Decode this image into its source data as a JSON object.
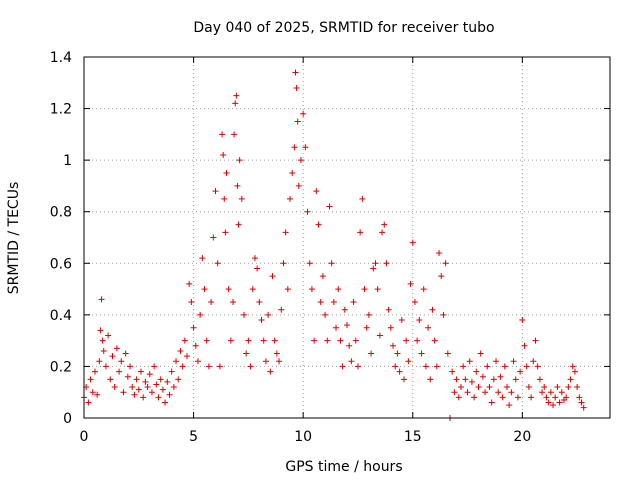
{
  "chart_data": {
    "type": "scatter",
    "title": "Day 040 of 2025, SRMTID for receiver tubo",
    "xlabel": "GPS time / hours",
    "ylabel": "SRMTID / TECUs",
    "xlim": [
      0,
      24
    ],
    "ylim": [
      0,
      1.4
    ],
    "x_ticks": [
      0,
      5,
      10,
      15,
      20
    ],
    "x_tick_labels": [
      "0",
      "5",
      "10",
      "15",
      "20"
    ],
    "y_ticks": [
      0,
      0.2,
      0.4,
      0.6,
      0.8,
      1,
      1.2,
      1.4
    ],
    "y_tick_labels": [
      "0",
      "0.2",
      "0.4",
      "0.6",
      "0.8",
      "1",
      "1.2",
      "1.4"
    ],
    "grid": true,
    "marker": "+",
    "series": [
      {
        "name": "SRMTID",
        "color": "#e00000",
        "points": [
          [
            0.0,
            0.08
          ],
          [
            0.1,
            0.12
          ],
          [
            0.2,
            0.06
          ],
          [
            0.3,
            0.15
          ],
          [
            0.4,
            0.1
          ],
          [
            0.5,
            0.18
          ],
          [
            0.6,
            0.09
          ],
          [
            0.7,
            0.22
          ],
          [
            0.75,
            0.34
          ],
          [
            0.8,
            0.46
          ],
          [
            0.85,
            0.3
          ],
          [
            0.9,
            0.26
          ],
          [
            1.0,
            0.2
          ],
          [
            1.1,
            0.32
          ],
          [
            1.2,
            0.15
          ],
          [
            1.3,
            0.24
          ],
          [
            1.4,
            0.12
          ],
          [
            1.5,
            0.27
          ],
          [
            1.6,
            0.18
          ],
          [
            1.7,
            0.22
          ],
          [
            1.8,
            0.1
          ],
          [
            1.9,
            0.25
          ],
          [
            2.0,
            0.16
          ],
          [
            2.1,
            0.2
          ],
          [
            2.2,
            0.12
          ],
          [
            2.3,
            0.09
          ],
          [
            2.4,
            0.15
          ],
          [
            2.5,
            0.11
          ],
          [
            2.6,
            0.18
          ],
          [
            2.7,
            0.08
          ],
          [
            2.8,
            0.14
          ],
          [
            2.9,
            0.12
          ],
          [
            3.0,
            0.17
          ],
          [
            3.1,
            0.1
          ],
          [
            3.2,
            0.2
          ],
          [
            3.3,
            0.13
          ],
          [
            3.4,
            0.08
          ],
          [
            3.5,
            0.15
          ],
          [
            3.6,
            0.11
          ],
          [
            3.7,
            0.06
          ],
          [
            3.8,
            0.14
          ],
          [
            3.9,
            0.09
          ],
          [
            4.0,
            0.18
          ],
          [
            4.1,
            0.12
          ],
          [
            4.2,
            0.22
          ],
          [
            4.3,
            0.15
          ],
          [
            4.4,
            0.26
          ],
          [
            4.5,
            0.2
          ],
          [
            4.6,
            0.3
          ],
          [
            4.7,
            0.24
          ],
          [
            4.8,
            0.52
          ],
          [
            4.9,
            0.45
          ],
          [
            5.0,
            0.35
          ],
          [
            5.1,
            0.28
          ],
          [
            5.2,
            0.22
          ],
          [
            5.3,
            0.4
          ],
          [
            5.4,
            0.62
          ],
          [
            5.5,
            0.5
          ],
          [
            5.6,
            0.3
          ],
          [
            5.7,
            0.2
          ],
          [
            5.8,
            0.45
          ],
          [
            5.9,
            0.7
          ],
          [
            6.0,
            0.88
          ],
          [
            6.1,
            0.6
          ],
          [
            6.2,
            0.2
          ],
          [
            6.3,
            1.1
          ],
          [
            6.35,
            1.02
          ],
          [
            6.4,
            0.85
          ],
          [
            6.45,
            0.72
          ],
          [
            6.5,
            0.95
          ],
          [
            6.6,
            0.5
          ],
          [
            6.7,
            0.3
          ],
          [
            6.8,
            0.45
          ],
          [
            6.85,
            1.1
          ],
          [
            6.9,
            1.22
          ],
          [
            6.95,
            1.25
          ],
          [
            7.0,
            0.9
          ],
          [
            7.05,
            0.75
          ],
          [
            7.1,
            1.0
          ],
          [
            7.2,
            0.85
          ],
          [
            7.3,
            0.4
          ],
          [
            7.4,
            0.25
          ],
          [
            7.5,
            0.3
          ],
          [
            7.6,
            0.2
          ],
          [
            7.7,
            0.5
          ],
          [
            7.8,
            0.62
          ],
          [
            7.9,
            0.58
          ],
          [
            8.0,
            0.45
          ],
          [
            8.1,
            0.38
          ],
          [
            8.2,
            0.3
          ],
          [
            8.3,
            0.22
          ],
          [
            8.4,
            0.4
          ],
          [
            8.5,
            0.18
          ],
          [
            8.6,
            0.55
          ],
          [
            8.7,
            0.3
          ],
          [
            8.8,
            0.25
          ],
          [
            8.9,
            0.22
          ],
          [
            9.0,
            0.42
          ],
          [
            9.1,
            0.6
          ],
          [
            9.2,
            0.72
          ],
          [
            9.3,
            0.5
          ],
          [
            9.4,
            0.85
          ],
          [
            9.5,
            0.95
          ],
          [
            9.6,
            1.05
          ],
          [
            9.65,
            1.34
          ],
          [
            9.7,
            1.28
          ],
          [
            9.75,
            1.15
          ],
          [
            9.8,
            0.9
          ],
          [
            9.9,
            1.0
          ],
          [
            10.0,
            1.18
          ],
          [
            10.1,
            1.05
          ],
          [
            10.2,
            0.8
          ],
          [
            10.3,
            0.6
          ],
          [
            10.4,
            0.5
          ],
          [
            10.5,
            0.3
          ],
          [
            10.6,
            0.88
          ],
          [
            10.7,
            0.75
          ],
          [
            10.8,
            0.45
          ],
          [
            10.9,
            0.55
          ],
          [
            11.0,
            0.4
          ],
          [
            11.1,
            0.3
          ],
          [
            11.2,
            0.82
          ],
          [
            11.3,
            0.6
          ],
          [
            11.4,
            0.45
          ],
          [
            11.5,
            0.35
          ],
          [
            11.6,
            0.5
          ],
          [
            11.7,
            0.3
          ],
          [
            11.8,
            0.2
          ],
          [
            11.9,
            0.42
          ],
          [
            12.0,
            0.36
          ],
          [
            12.1,
            0.28
          ],
          [
            12.2,
            0.22
          ],
          [
            12.3,
            0.45
          ],
          [
            12.4,
            0.3
          ],
          [
            12.5,
            0.2
          ],
          [
            12.6,
            0.72
          ],
          [
            12.7,
            0.85
          ],
          [
            12.8,
            0.5
          ],
          [
            12.9,
            0.35
          ],
          [
            13.0,
            0.4
          ],
          [
            13.1,
            0.25
          ],
          [
            13.2,
            0.58
          ],
          [
            13.3,
            0.6
          ],
          [
            13.4,
            0.5
          ],
          [
            13.5,
            0.32
          ],
          [
            13.6,
            0.72
          ],
          [
            13.7,
            0.75
          ],
          [
            13.8,
            0.6
          ],
          [
            13.9,
            0.42
          ],
          [
            14.0,
            0.35
          ],
          [
            14.1,
            0.28
          ],
          [
            14.2,
            0.2
          ],
          [
            14.3,
            0.25
          ],
          [
            14.4,
            0.18
          ],
          [
            14.5,
            0.38
          ],
          [
            14.6,
            0.15
          ],
          [
            14.7,
            0.3
          ],
          [
            14.8,
            0.22
          ],
          [
            14.9,
            0.52
          ],
          [
            15.0,
            0.68
          ],
          [
            15.1,
            0.45
          ],
          [
            15.2,
            0.3
          ],
          [
            15.3,
            0.38
          ],
          [
            15.4,
            0.25
          ],
          [
            15.5,
            0.5
          ],
          [
            15.6,
            0.2
          ],
          [
            15.7,
            0.35
          ],
          [
            15.8,
            0.15
          ],
          [
            15.9,
            0.42
          ],
          [
            16.0,
            0.3
          ],
          [
            16.1,
            0.2
          ],
          [
            16.2,
            0.64
          ],
          [
            16.3,
            0.55
          ],
          [
            16.4,
            0.4
          ],
          [
            16.5,
            0.6
          ],
          [
            16.6,
            0.25
          ],
          [
            16.7,
            0.0
          ],
          [
            16.8,
            0.18
          ],
          [
            16.9,
            0.1
          ],
          [
            17.0,
            0.15
          ],
          [
            17.1,
            0.08
          ],
          [
            17.2,
            0.12
          ],
          [
            17.3,
            0.2
          ],
          [
            17.4,
            0.15
          ],
          [
            17.5,
            0.1
          ],
          [
            17.6,
            0.22
          ],
          [
            17.7,
            0.14
          ],
          [
            17.8,
            0.08
          ],
          [
            17.9,
            0.18
          ],
          [
            18.0,
            0.12
          ],
          [
            18.1,
            0.25
          ],
          [
            18.2,
            0.16
          ],
          [
            18.3,
            0.1
          ],
          [
            18.4,
            0.2
          ],
          [
            18.5,
            0.12
          ],
          [
            18.6,
            0.06
          ],
          [
            18.7,
            0.15
          ],
          [
            18.8,
            0.22
          ],
          [
            18.9,
            0.1
          ],
          [
            19.0,
            0.16
          ],
          [
            19.1,
            0.08
          ],
          [
            19.2,
            0.2
          ],
          [
            19.3,
            0.12
          ],
          [
            19.4,
            0.05
          ],
          [
            19.5,
            0.1
          ],
          [
            19.6,
            0.22
          ],
          [
            19.7,
            0.15
          ],
          [
            19.8,
            0.08
          ],
          [
            19.9,
            0.18
          ],
          [
            20.0,
            0.38
          ],
          [
            20.1,
            0.28
          ],
          [
            20.2,
            0.2
          ],
          [
            20.3,
            0.12
          ],
          [
            20.4,
            0.08
          ],
          [
            20.5,
            0.22
          ],
          [
            20.6,
            0.3
          ],
          [
            20.7,
            0.2
          ],
          [
            20.8,
            0.15
          ],
          [
            20.9,
            0.1
          ],
          [
            21.0,
            0.12
          ],
          [
            21.1,
            0.08
          ],
          [
            21.2,
            0.06
          ],
          [
            21.3,
            0.1
          ],
          [
            21.4,
            0.05
          ],
          [
            21.5,
            0.08
          ],
          [
            21.6,
            0.12
          ],
          [
            21.7,
            0.06
          ],
          [
            21.8,
            0.1
          ],
          [
            21.9,
            0.07
          ],
          [
            22.0,
            0.08
          ],
          [
            22.1,
            0.12
          ],
          [
            22.2,
            0.15
          ],
          [
            22.3,
            0.2
          ],
          [
            22.4,
            0.18
          ],
          [
            22.5,
            0.12
          ],
          [
            22.6,
            0.08
          ],
          [
            22.7,
            0.06
          ],
          [
            22.8,
            0.04
          ]
        ]
      }
    ]
  }
}
